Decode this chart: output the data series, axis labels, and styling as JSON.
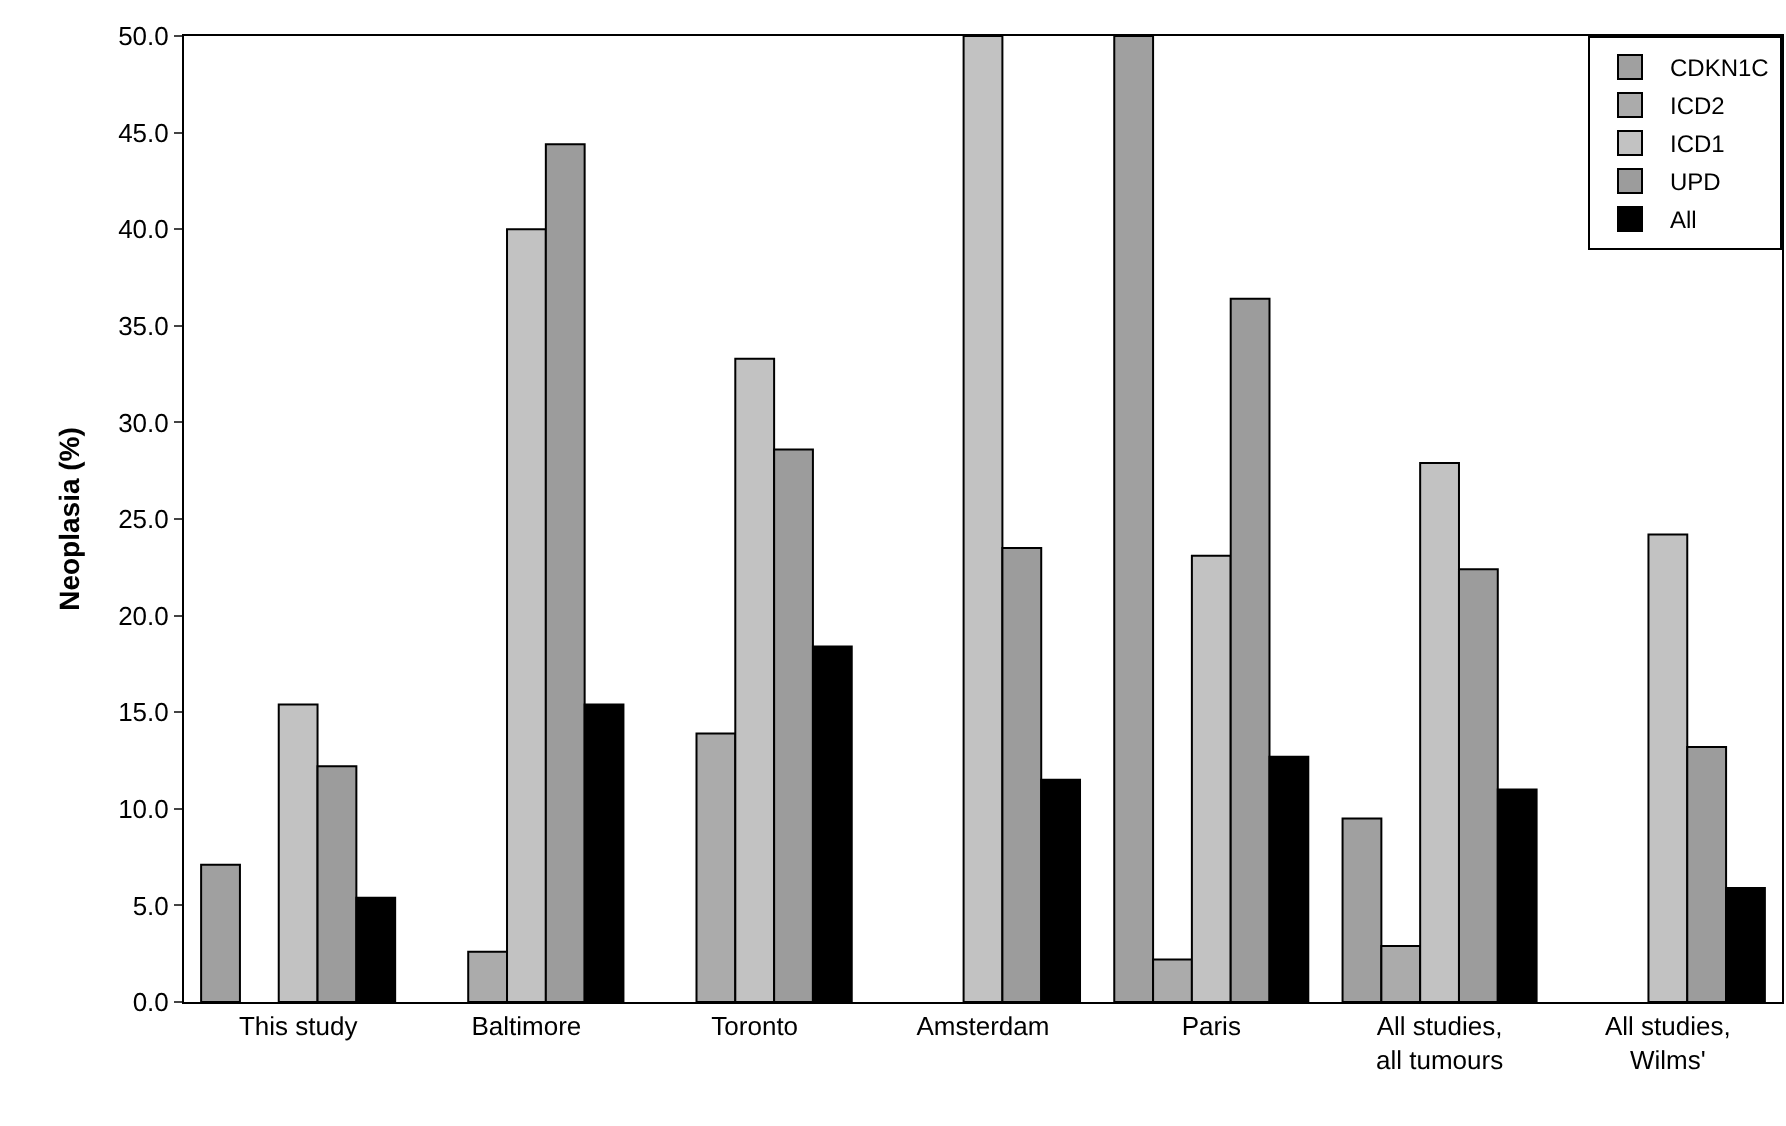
{
  "chart_data": {
    "type": "bar",
    "ylabel": "Neoplasia (%)",
    "categories": [
      "This study",
      "Baltimore",
      "Toronto",
      "Amsterdam",
      "Paris",
      "All studies, all tumours",
      "All studies, Wilms'"
    ],
    "series": [
      {
        "name": "CDKN1C",
        "color": "#a0a0a0",
        "values": [
          7.1,
          null,
          null,
          null,
          50.0,
          9.5,
          null
        ]
      },
      {
        "name": "ICD2",
        "color": "#ababab",
        "values": [
          null,
          2.6,
          13.9,
          null,
          2.2,
          2.9,
          null
        ]
      },
      {
        "name": "ICD1",
        "color": "#c2c2c2",
        "values": [
          15.4,
          40.0,
          33.3,
          50.0,
          23.1,
          27.9,
          24.2
        ]
      },
      {
        "name": "UPD",
        "color": "#9c9c9c",
        "values": [
          12.2,
          44.4,
          28.6,
          23.5,
          36.4,
          22.4,
          13.2
        ]
      },
      {
        "name": "All",
        "color": "#000000",
        "values": [
          5.4,
          15.4,
          18.4,
          11.5,
          12.7,
          11.0,
          5.9
        ]
      }
    ],
    "ylim": [
      0,
      50
    ],
    "yticks": [
      {
        "value": 0,
        "label": "0.0"
      },
      {
        "value": 5,
        "label": "5.0"
      },
      {
        "value": 10,
        "label": "10.0"
      },
      {
        "value": 15,
        "label": "15.0"
      },
      {
        "value": 20,
        "label": "20.0"
      },
      {
        "value": 25,
        "label": "25.0"
      },
      {
        "value": 30,
        "label": "30.0"
      },
      {
        "value": 35,
        "label": "35.0"
      },
      {
        "value": 40,
        "label": "40.0"
      },
      {
        "value": 45,
        "label": "45.0"
      },
      {
        "value": 50,
        "label": "50.0"
      }
    ],
    "grid": false,
    "legend": "top right"
  }
}
